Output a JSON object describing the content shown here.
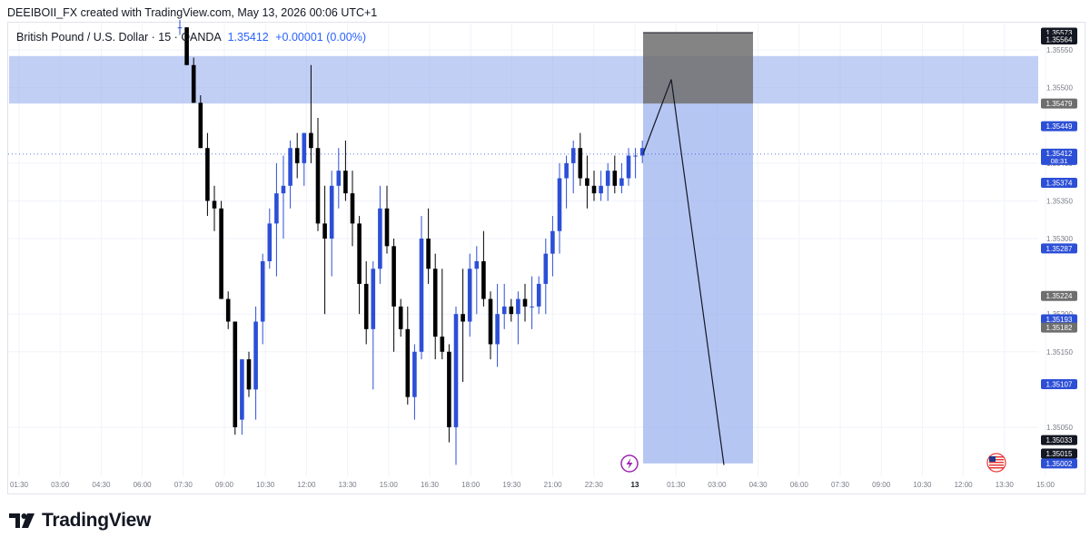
{
  "header": {
    "text": "DEEIBOII_FX created with TradingView.com, May 13, 2026 00:06 UTC+1"
  },
  "legend": {
    "symbol": "British Pound / U.S. Dollar · 15 · OANDA",
    "price": "1.35412",
    "change": "+0.00001 (0.00%)"
  },
  "footer": {
    "brand": "TradingView"
  },
  "colors": {
    "bull": "#2c4fd6",
    "bear": "#000000",
    "zone": "#8fa8ec",
    "stop": "#6e6e6e",
    "grid": "#f0f3fa",
    "axis_text": "#787b86"
  },
  "icons": {
    "lightning": "lightning-icon",
    "flag": "us-flag-icon",
    "logo": "tradingview-logo-icon"
  },
  "chart_data": {
    "type": "candlestick",
    "title": "British Pound / U.S. Dollar · 15 · OANDA",
    "ylim": [
      1.34985,
      1.35585
    ],
    "y_ticks": [
      "1.35550",
      "1.35500",
      "1.35400",
      "1.35350",
      "1.35300",
      "1.35200",
      "1.35150",
      "1.35050"
    ],
    "x_ticks": [
      "01:30",
      "03:00",
      "04:30",
      "06:00",
      "07:30",
      "09:00",
      "10:30",
      "12:00",
      "13:30",
      "15:00",
      "16:30",
      "18:00",
      "19:30",
      "21:00",
      "22:30",
      "13",
      "01:30",
      "03:00",
      "04:30",
      "06:00",
      "07:30",
      "09:00",
      "10:30",
      "12:00",
      "13:30",
      "15:00"
    ],
    "grid": true,
    "candles": [
      [
        1.3558,
        1.3559,
        1.3557,
        1.3558
      ],
      [
        1.3558,
        1.3558,
        1.3553,
        1.3553
      ],
      [
        1.3553,
        1.3554,
        1.3548,
        1.3548
      ],
      [
        1.3548,
        1.3549,
        1.3542,
        1.3542
      ],
      [
        1.3542,
        1.3544,
        1.3533,
        1.3535
      ],
      [
        1.3535,
        1.3537,
        1.3531,
        1.3534
      ],
      [
        1.3534,
        1.3535,
        1.3522,
        1.3522
      ],
      [
        1.3522,
        1.3523,
        1.3518,
        1.3519
      ],
      [
        1.3519,
        1.3519,
        1.3504,
        1.3505
      ],
      [
        1.3506,
        1.3514,
        1.3504,
        1.3514
      ],
      [
        1.3514,
        1.3515,
        1.3509,
        1.351
      ],
      [
        1.351,
        1.3521,
        1.3506,
        1.3519
      ],
      [
        1.3519,
        1.3528,
        1.3516,
        1.3527
      ],
      [
        1.3527,
        1.3534,
        1.3526,
        1.3532
      ],
      [
        1.3532,
        1.354,
        1.3525,
        1.3536
      ],
      [
        1.3536,
        1.3541,
        1.353,
        1.3537
      ],
      [
        1.3537,
        1.3543,
        1.3534,
        1.3542
      ],
      [
        1.3542,
        1.3544,
        1.3538,
        1.354
      ],
      [
        1.354,
        1.3544,
        1.3537,
        1.3544
      ],
      [
        1.3544,
        1.3553,
        1.354,
        1.3542
      ],
      [
        1.3542,
        1.3546,
        1.3531,
        1.3532
      ],
      [
        1.3532,
        1.3537,
        1.352,
        1.353
      ],
      [
        1.353,
        1.3539,
        1.3525,
        1.3537
      ],
      [
        1.3537,
        1.3542,
        1.3534,
        1.3539
      ],
      [
        1.3539,
        1.3543,
        1.3535,
        1.3536
      ],
      [
        1.3536,
        1.3539,
        1.3529,
        1.3532
      ],
      [
        1.3532,
        1.3533,
        1.352,
        1.3524
      ],
      [
        1.3524,
        1.3527,
        1.3516,
        1.3518
      ],
      [
        1.3518,
        1.3527,
        1.351,
        1.3526
      ],
      [
        1.3526,
        1.3537,
        1.3524,
        1.3534
      ],
      [
        1.3534,
        1.3537,
        1.3528,
        1.3529
      ],
      [
        1.3529,
        1.353,
        1.3515,
        1.3521
      ],
      [
        1.3521,
        1.3522,
        1.3517,
        1.3518
      ],
      [
        1.3518,
        1.3521,
        1.3508,
        1.3509
      ],
      [
        1.3509,
        1.3516,
        1.3506,
        1.3515
      ],
      [
        1.3515,
        1.3533,
        1.3514,
        1.353
      ],
      [
        1.353,
        1.3534,
        1.3524,
        1.3526
      ],
      [
        1.3526,
        1.3528,
        1.3514,
        1.3517
      ],
      [
        1.3517,
        1.3526,
        1.3514,
        1.3515
      ],
      [
        1.3515,
        1.3516,
        1.3503,
        1.3505
      ],
      [
        1.3505,
        1.3521,
        1.35,
        1.352
      ],
      [
        1.352,
        1.3526,
        1.3511,
        1.3519
      ],
      [
        1.3519,
        1.3528,
        1.3517,
        1.3526
      ],
      [
        1.3526,
        1.3529,
        1.352,
        1.3527
      ],
      [
        1.3527,
        1.3531,
        1.3521,
        1.3522
      ],
      [
        1.3522,
        1.3523,
        1.3514,
        1.3516
      ],
      [
        1.3516,
        1.3524,
        1.3513,
        1.352
      ],
      [
        1.352,
        1.3524,
        1.3518,
        1.3521
      ],
      [
        1.3521,
        1.3522,
        1.3519,
        1.352
      ],
      [
        1.352,
        1.3523,
        1.3516,
        1.3522
      ],
      [
        1.3522,
        1.3524,
        1.3519,
        1.3521
      ],
      [
        1.3521,
        1.3525,
        1.3518,
        1.3521
      ],
      [
        1.3521,
        1.3525,
        1.352,
        1.3524
      ],
      [
        1.3524,
        1.353,
        1.352,
        1.3528
      ],
      [
        1.3528,
        1.3533,
        1.3525,
        1.3531
      ],
      [
        1.3531,
        1.354,
        1.3528,
        1.3538
      ],
      [
        1.3538,
        1.3541,
        1.3534,
        1.354
      ],
      [
        1.354,
        1.3543,
        1.3536,
        1.3542
      ],
      [
        1.3542,
        1.3544,
        1.3537,
        1.3538
      ],
      [
        1.3538,
        1.3541,
        1.3534,
        1.3537
      ],
      [
        1.3537,
        1.3539,
        1.3535,
        1.3536
      ],
      [
        1.3536,
        1.3539,
        1.3535,
        1.3537
      ],
      [
        1.3537,
        1.354,
        1.3535,
        1.3539
      ],
      [
        1.3539,
        1.3541,
        1.3536,
        1.3537
      ],
      [
        1.3537,
        1.354,
        1.3536,
        1.3538
      ],
      [
        1.3538,
        1.3542,
        1.3537,
        1.3541
      ],
      [
        1.3541,
        1.3542,
        1.3538,
        1.3541
      ],
      [
        1.3541,
        1.3543,
        1.354,
        1.3542
      ]
    ],
    "zones": {
      "supply": {
        "from": 1.35542,
        "to": 1.35479,
        "label": "1.35479"
      },
      "stop": {
        "from": 1.35573,
        "to": 1.35479,
        "top_label": "1.35573",
        "label": "1.35564"
      },
      "target": {
        "from": 1.35479,
        "to": 1.35002,
        "label": "1.35002"
      }
    },
    "projection": [
      [
        1.35412,
        0
      ],
      [
        1.35511,
        1
      ],
      [
        1.35,
        2
      ]
    ],
    "current_price": {
      "value": 1.35412,
      "label": "1.35412",
      "countdown": "08:31"
    },
    "price_labels": [
      {
        "text": "1.35573",
        "value": 1.35573,
        "color": "#131722"
      },
      {
        "text": "1.35564",
        "value": 1.35564,
        "color": "#131722"
      },
      {
        "text": "1.35479",
        "value": 1.35479,
        "color": "#6e6e6e"
      },
      {
        "text": "1.35449",
        "value": 1.35449,
        "color": "#2c4fd6"
      },
      {
        "text": "1.35374",
        "value": 1.35374,
        "color": "#2c4fd6"
      },
      {
        "text": "1.35287",
        "value": 1.35287,
        "color": "#2c4fd6"
      },
      {
        "text": "1.35224",
        "value": 1.35224,
        "color": "#6e6e6e"
      },
      {
        "text": "1.35193",
        "value": 1.35193,
        "color": "#2c4fd6"
      },
      {
        "text": "1.35182",
        "value": 1.35182,
        "color": "#6e6e6e"
      },
      {
        "text": "1.35107",
        "value": 1.35107,
        "color": "#2c4fd6"
      },
      {
        "text": "1.35033",
        "value": 1.35033,
        "color": "#131722"
      },
      {
        "text": "1.35015",
        "value": 1.35015,
        "color": "#131722"
      },
      {
        "text": "1.35002",
        "value": 1.35002,
        "color": "#2c4fd6"
      }
    ]
  }
}
